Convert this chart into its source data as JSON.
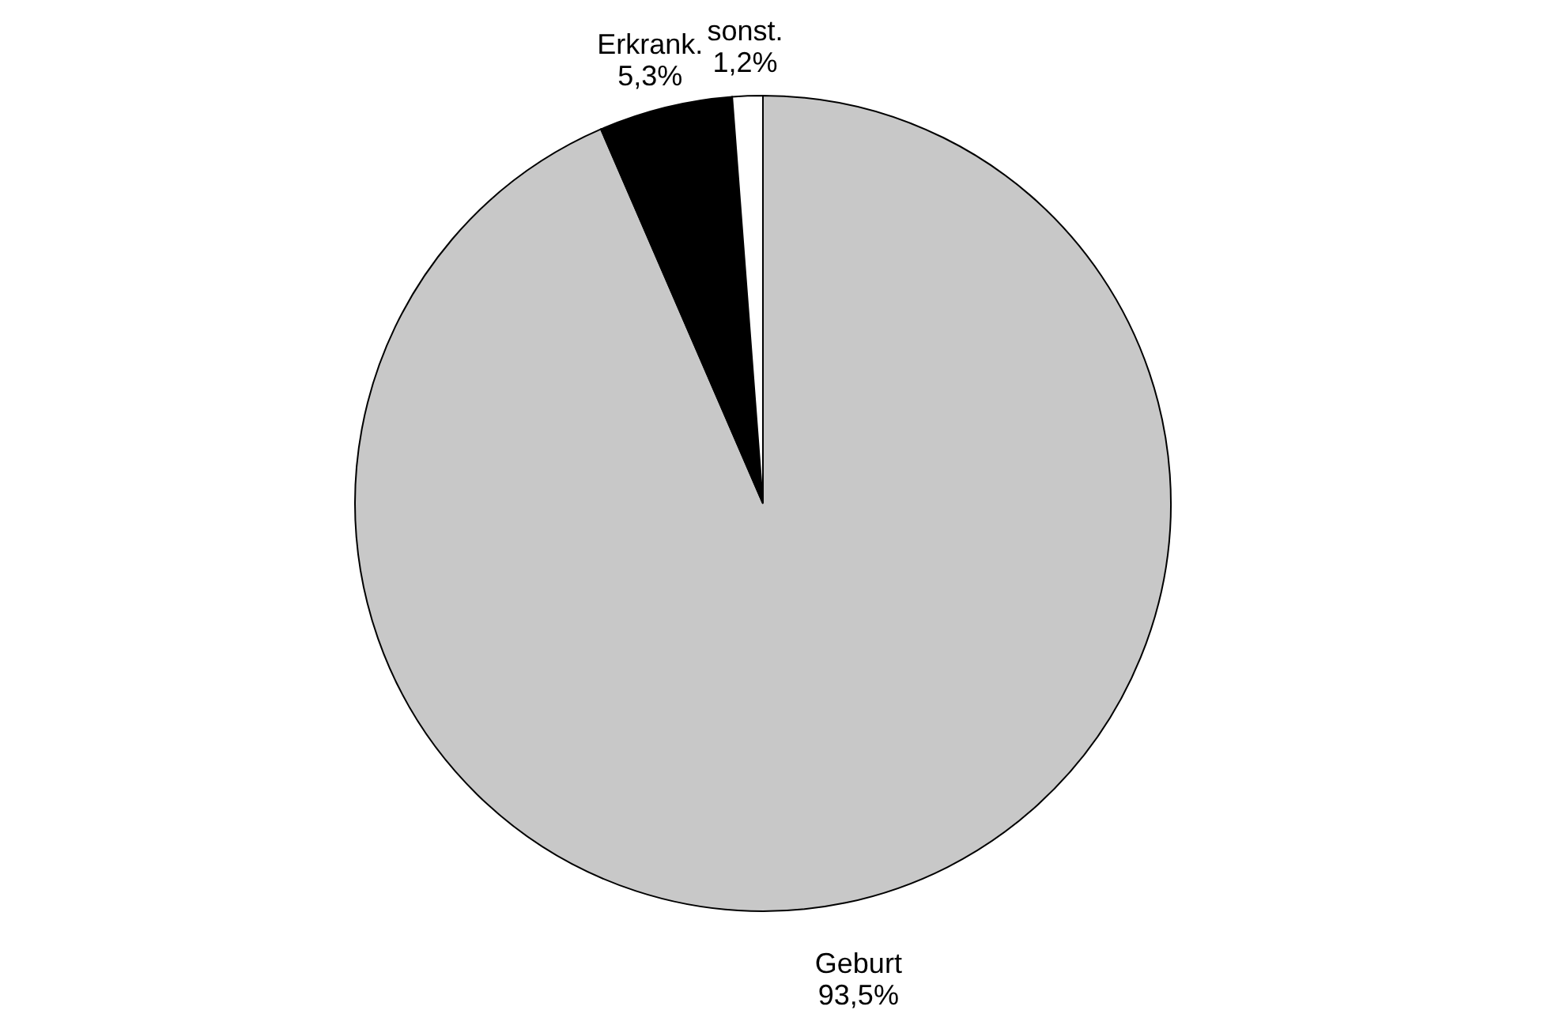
{
  "chart_data": {
    "type": "pie",
    "categories": [
      "Geburt",
      "Erkrank.",
      "sonst."
    ],
    "values": [
      93.5,
      5.3,
      1.2
    ],
    "value_labels": [
      "93,5%",
      "5,3%",
      "1,2%"
    ],
    "colors": [
      "#c8c8c8",
      "#000000",
      "#ffffff"
    ],
    "legend": false
  }
}
